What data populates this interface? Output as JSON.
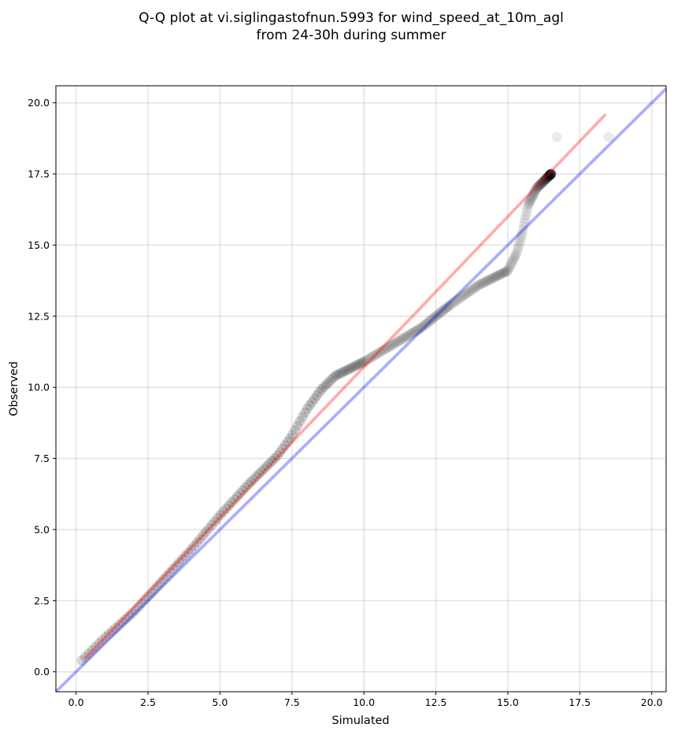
{
  "chart_data": {
    "type": "scatter",
    "title_lines": [
      "Q-Q plot at vi.siglingastofnun.5993 for wind_speed_at_10m_agl",
      "from 24-30h during summer"
    ],
    "xlabel": "Simulated",
    "ylabel": "Observed",
    "xlim": [
      -0.7,
      20.5
    ],
    "ylim": [
      -0.7,
      20.6
    ],
    "xticks": [
      0.0,
      2.5,
      5.0,
      7.5,
      10.0,
      12.5,
      15.0,
      17.5,
      20.0
    ],
    "yticks": [
      0.0,
      2.5,
      5.0,
      7.5,
      10.0,
      12.5,
      15.0,
      17.5,
      20.0
    ],
    "xtick_labels": [
      "0.0",
      "2.5",
      "5.0",
      "7.5",
      "10.0",
      "12.5",
      "15.0",
      "17.5",
      "20.0"
    ],
    "ytick_labels": [
      "0.0",
      "2.5",
      "5.0",
      "7.5",
      "10.0",
      "12.5",
      "15.0",
      "17.5",
      "20.0"
    ],
    "grid": true,
    "quantile_anchors": [
      [
        0.2,
        0.4
      ],
      [
        0.5,
        0.7
      ],
      [
        1.0,
        1.2
      ],
      [
        2.0,
        2.1
      ],
      [
        3.0,
        3.2
      ],
      [
        4.0,
        4.3
      ],
      [
        5.0,
        5.5
      ],
      [
        6.0,
        6.6
      ],
      [
        7.0,
        7.6
      ],
      [
        7.5,
        8.3
      ],
      [
        8.0,
        9.2
      ],
      [
        8.5,
        9.9
      ],
      [
        9.0,
        10.4
      ],
      [
        10.0,
        10.9
      ],
      [
        11.0,
        11.5
      ],
      [
        12.0,
        12.1
      ],
      [
        13.0,
        12.9
      ],
      [
        14.0,
        13.6
      ],
      [
        15.0,
        14.1
      ],
      [
        15.3,
        14.7
      ],
      [
        15.5,
        15.4
      ],
      [
        15.7,
        16.4
      ],
      [
        16.0,
        17.0
      ],
      [
        16.5,
        17.5
      ]
    ],
    "tail_points": [
      [
        16.7,
        18.8
      ],
      [
        18.5,
        18.8
      ]
    ],
    "reference_lines": [
      {
        "name": "",
        "color": "#ff0000",
        "opacity": 0.32,
        "points": [
          [
            0.3,
            0.45
          ],
          [
            18.4,
            19.6
          ]
        ]
      },
      {
        "name": "",
        "color": "#0000ff",
        "opacity": 0.32,
        "points": [
          [
            -0.7,
            -0.7
          ],
          [
            20.5,
            20.5
          ]
        ]
      }
    ],
    "marker_color": "#000000"
  }
}
